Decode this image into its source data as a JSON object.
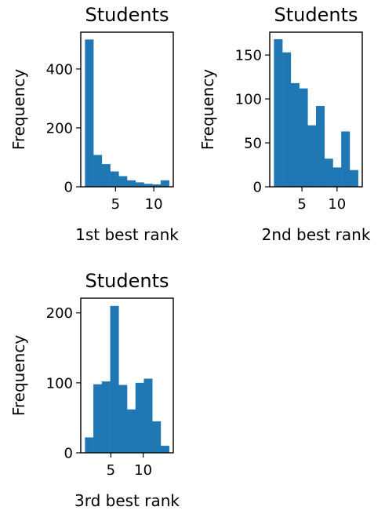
{
  "chart_data": [
    {
      "type": "bar",
      "title": "Students",
      "xlabel": "1st best rank",
      "ylabel": "Frequency",
      "bin_edges": [
        1.0,
        2.1,
        3.2,
        4.3,
        5.4,
        6.5,
        7.6,
        8.7,
        9.8,
        10.9,
        12.0
      ],
      "values": [
        500,
        108,
        77,
        52,
        36,
        22,
        15,
        10,
        8,
        22
      ],
      "xlim": [
        0.45,
        12.55
      ],
      "ylim": [
        0,
        525
      ],
      "xticks": [
        5,
        10
      ],
      "yticks": [
        0,
        200,
        400
      ],
      "color": "#1f77b4"
    },
    {
      "type": "bar",
      "title": "Students",
      "xlabel": "2nd best rank",
      "ylabel": "Frequency",
      "bin_edges": [
        1.0,
        2.2,
        3.4,
        4.6,
        5.8,
        7.0,
        8.2,
        9.4,
        10.6,
        11.8,
        13.0
      ],
      "values": [
        168,
        153,
        118,
        112,
        70,
        92,
        32,
        22,
        63,
        19
      ],
      "xlim": [
        0.4,
        13.6
      ],
      "ylim": [
        0,
        176
      ],
      "xticks": [
        5,
        10
      ],
      "yticks": [
        0,
        50,
        100,
        150
      ],
      "color": "#1f77b4"
    },
    {
      "type": "bar",
      "title": "Students",
      "xlabel": "3rd best rank",
      "ylabel": "Frequency",
      "bin_edges": [
        1.0,
        2.3,
        3.6,
        4.9,
        6.2,
        7.5,
        8.8,
        10.1,
        11.4,
        12.7,
        14.0
      ],
      "values": [
        22,
        98,
        102,
        210,
        97,
        62,
        100,
        106,
        45,
        10
      ],
      "xlim": [
        0.35,
        14.65
      ],
      "ylim": [
        0,
        221
      ],
      "xticks": [
        5,
        10
      ],
      "yticks": [
        0,
        100,
        200
      ],
      "color": "#1f77b4"
    }
  ]
}
